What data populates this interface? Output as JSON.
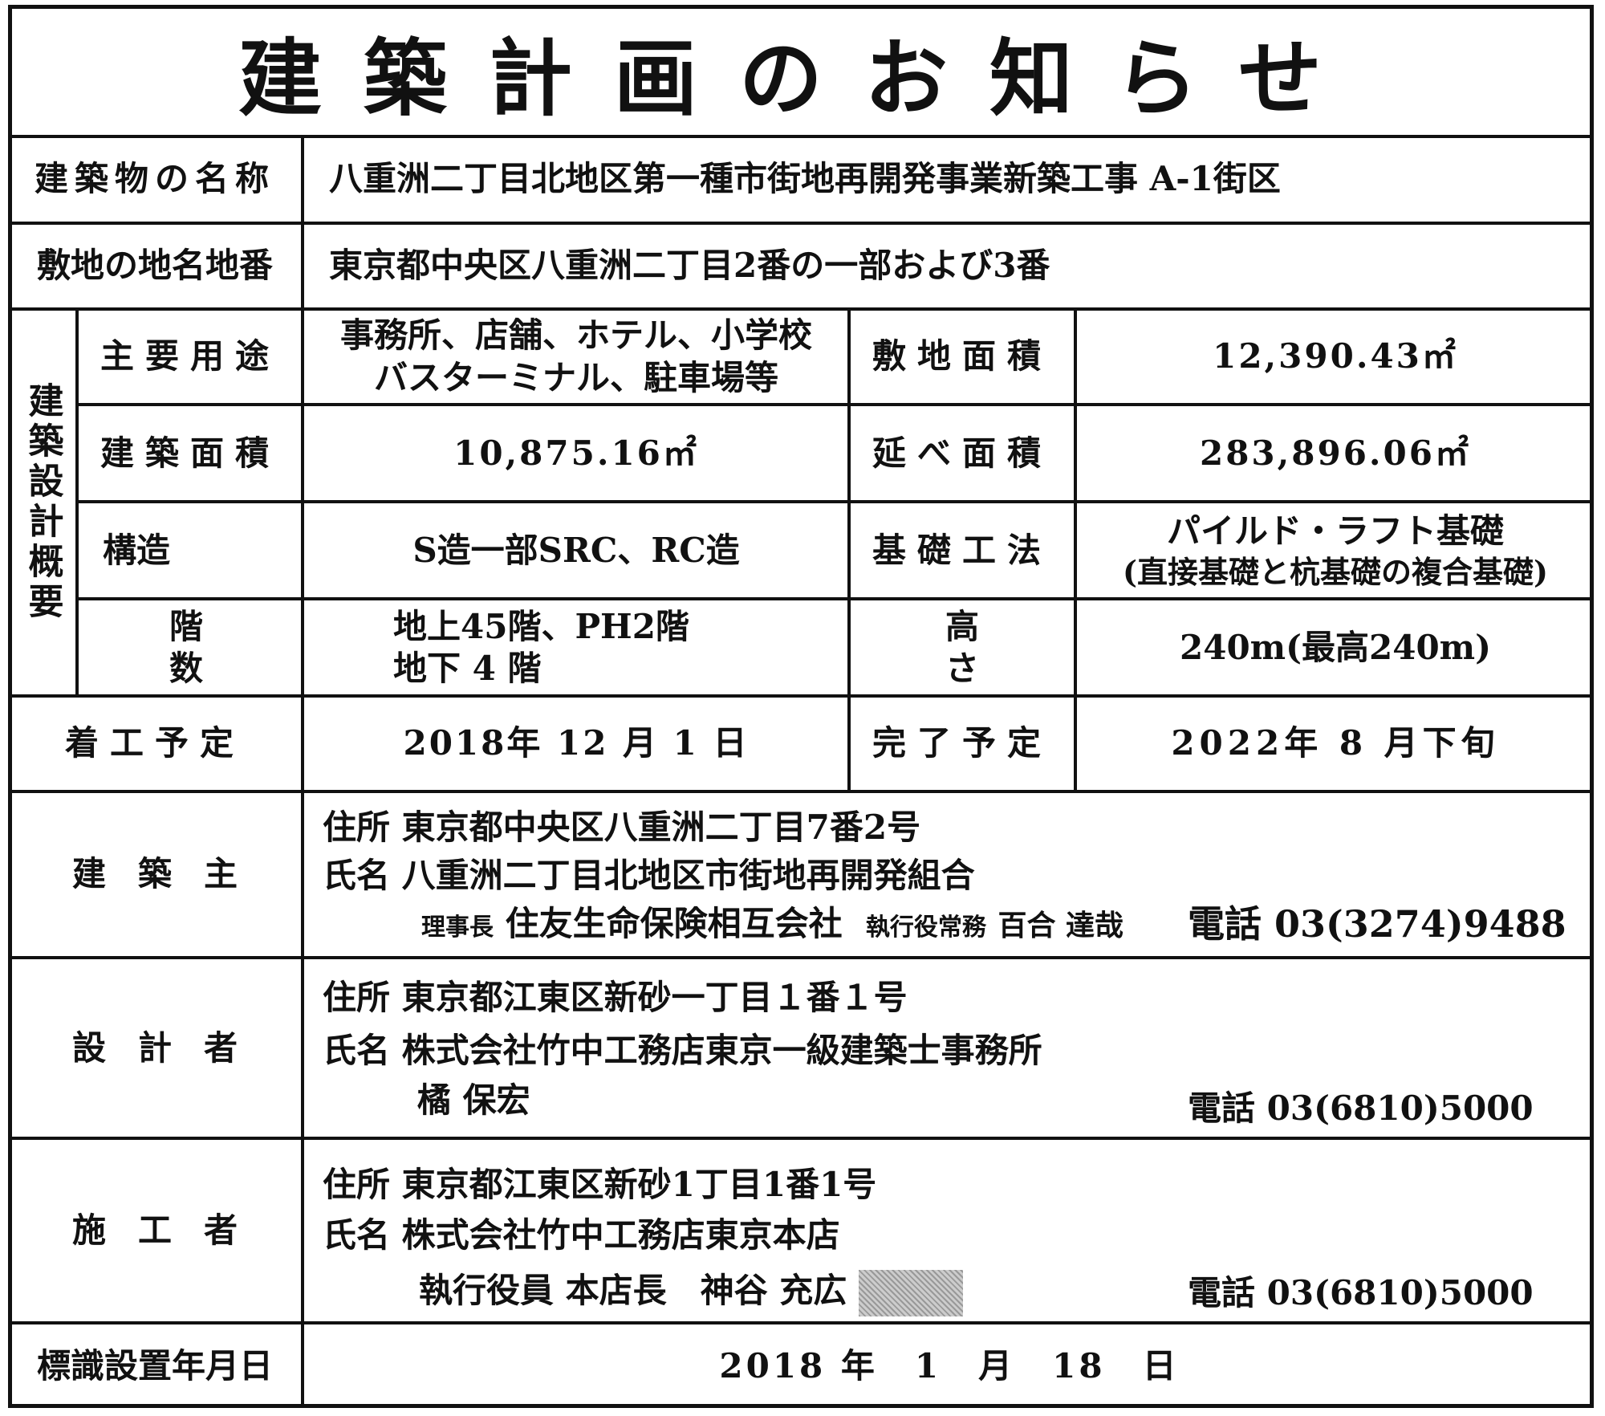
{
  "title": "建築計画のお知らせ",
  "building_name": {
    "label": "建築物の名称",
    "value": "八重洲二丁目北地区第一種市街地再開発事業新築工事 A-1街区"
  },
  "site_address": {
    "label": "敷地の地名地番",
    "value": "東京都中央区八重洲二丁目2番の一部および3番"
  },
  "design_summary": {
    "label": "建築設計概要",
    "use": {
      "label": "主要用途",
      "value_line1": "事務所、店舗、ホテル、小学校",
      "value_line2": "バスターミナル、駐車場等"
    },
    "site_area": {
      "label": "敷地面積",
      "value": "12,390.43㎡"
    },
    "building_area": {
      "label": "建築面積",
      "value": "10,875.16㎡"
    },
    "total_floor_area": {
      "label": "延べ面積",
      "value": "283,896.06㎡"
    },
    "structure": {
      "label": "構造",
      "value": "S造一部SRC、RC造"
    },
    "foundation": {
      "label": "基礎工法",
      "value_line1": "パイルド・ラフト基礎",
      "value_line2": "(直接基礎と杭基礎の複合基礎)"
    },
    "floors": {
      "label": "階数",
      "value_line1": "地上45階、PH2階",
      "value_line2": "地下 4 階"
    },
    "height": {
      "label": "高さ",
      "value": "240m(最高240m)"
    }
  },
  "start": {
    "label": "着工予定",
    "value": "2018年 12 月 1 日"
  },
  "completion": {
    "label": "完了予定",
    "value": "2022年 8 月下旬"
  },
  "owner": {
    "label": "建築主",
    "address_label": "住所",
    "address": "東京都中央区八重洲二丁目7番2号",
    "name_label": "氏名",
    "name": "八重洲二丁目北地区市街地再開発組合",
    "chair_title": "理事長",
    "chair_org": "住友生命保険相互会社",
    "exec_title": "執行役常務",
    "exec_name": "百合 達哉",
    "phone_label": "電話",
    "phone": "03(3274)9488"
  },
  "designer": {
    "label": "設計者",
    "address_label": "住所",
    "address": "東京都江東区新砂一丁目１番１号",
    "name_label": "氏名",
    "name": "株式会社竹中工務店東京一級建築士事務所",
    "person": "橘 保宏",
    "phone_label": "電話",
    "phone": "03(6810)5000"
  },
  "contractor": {
    "label": "施工者",
    "address_label": "住所",
    "address": "東京都江東区新砂1丁目1番1号",
    "name_label": "氏名",
    "name": "株式会社竹中工務店東京本店",
    "person": "執行役員 本店長　神谷 充広",
    "phone_label": "電話",
    "phone": "03(6810)5000"
  },
  "posted_date": {
    "label": "標識設置年月日",
    "value": "2018 年　1　月　18　日"
  }
}
